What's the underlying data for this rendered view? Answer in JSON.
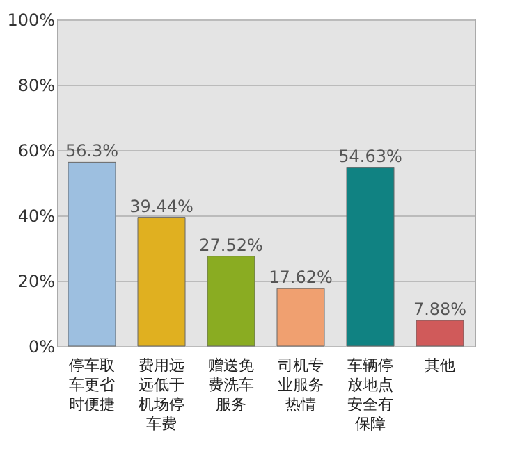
{
  "chart_data": {
    "type": "bar",
    "categories": [
      "停车取车更省时便捷",
      "费用远远低于机场停车费",
      "赠送免费洗车服务",
      "司机专业服务热情",
      "车辆停放地点安全有保障",
      "其他"
    ],
    "values": [
      56.3,
      39.44,
      27.52,
      17.62,
      54.63,
      7.88
    ],
    "colors": [
      "#9dbfe0",
      "#e0b020",
      "#8aac22",
      "#f0a070",
      "#108282",
      "#d05a5a"
    ],
    "value_labels": [
      "56.3%",
      "39.44%",
      "27.52%",
      "17.62%",
      "54.63%",
      "7.88%"
    ],
    "ylim": [
      0,
      100
    ],
    "yticks": [
      {
        "value": 0,
        "label": "0%"
      },
      {
        "value": 20,
        "label": "20%"
      },
      {
        "value": 40,
        "label": "40%"
      },
      {
        "value": 60,
        "label": "60%"
      },
      {
        "value": 80,
        "label": "80%"
      },
      {
        "value": 100,
        "label": "100%"
      }
    ],
    "grid": true
  }
}
